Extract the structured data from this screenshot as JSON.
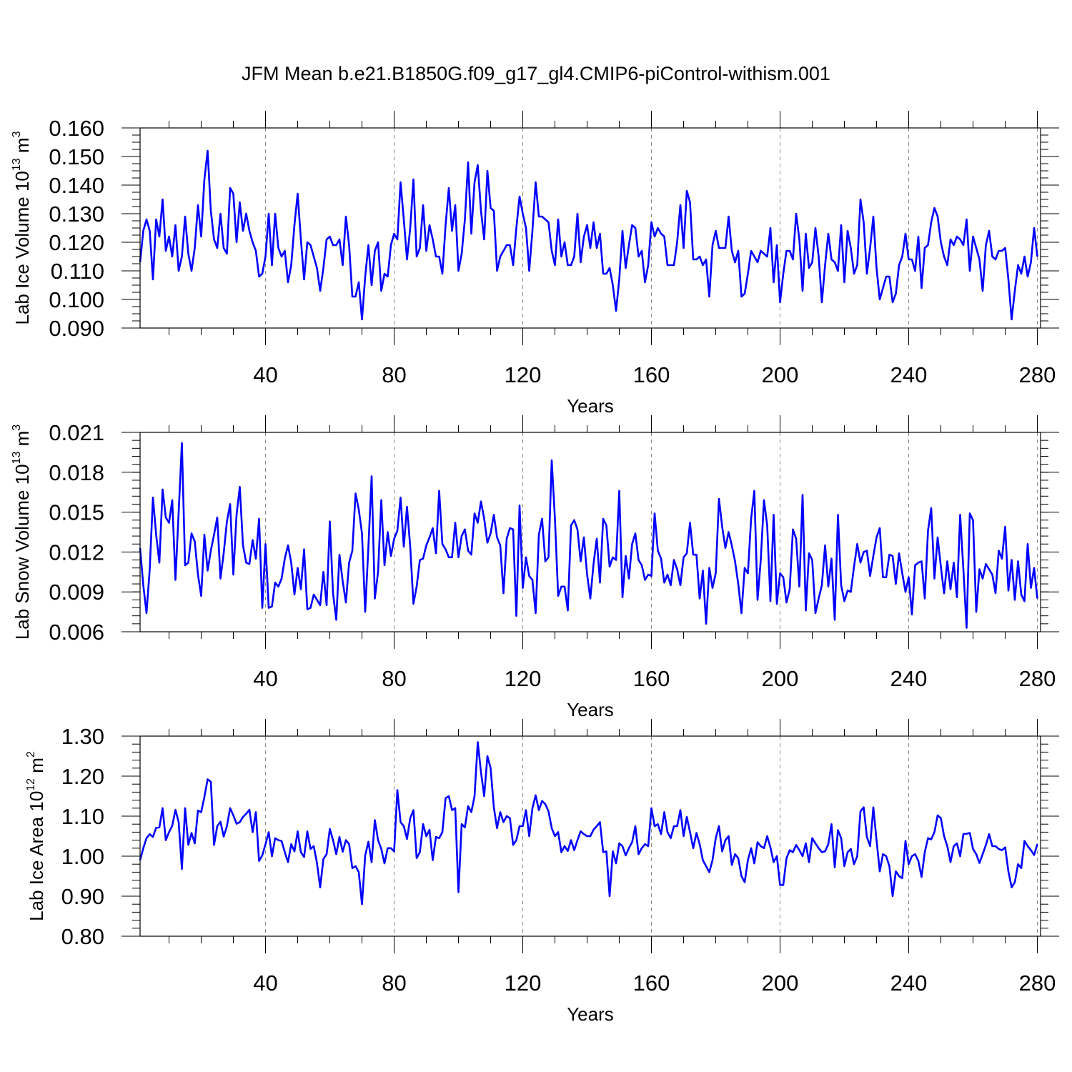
{
  "title": "JFM Mean b.e21.B1850G.f09_g17_gl4.CMIP6-piControl-withism.001",
  "chart_data": [
    {
      "type": "line",
      "name": "ice-volume",
      "ylabel": {
        "main": "Lab Ice Volume 10",
        "exp": "13",
        "unit": " m",
        "uexp": "3"
      },
      "xlabel": "Years",
      "xlim": [
        1,
        281
      ],
      "ylim": [
        0.09,
        0.16
      ],
      "xticks": [
        40,
        80,
        120,
        160,
        200,
        240,
        280
      ],
      "xtick_labels": [
        "40",
        "80",
        "120",
        "160",
        "200",
        "240",
        "280"
      ],
      "yticks": [
        0.09,
        0.1,
        0.11,
        0.12,
        0.13,
        0.14,
        0.15,
        0.16
      ],
      "ytick_labels": [
        "0.090",
        "0.100",
        "0.110",
        "0.120",
        "0.130",
        "0.140",
        "0.150",
        "0.160"
      ],
      "yminor_step": 0.0025,
      "grid": "dashed-vertical",
      "color": "#0000ff",
      "series": [
        {
          "name": "Lab Ice Volume",
          "x_start": 1,
          "x_step": 1,
          "values": [
            0.113,
            0.124,
            0.128,
            0.124,
            0.107,
            0.128,
            0.122,
            0.135,
            0.117,
            0.122,
            0.115,
            0.126,
            0.11,
            0.115,
            0.129,
            0.116,
            0.11,
            0.118,
            0.133,
            0.122,
            0.142,
            0.152,
            0.131,
            0.121,
            0.118,
            0.13,
            0.118,
            0.116,
            0.139,
            0.137,
            0.12,
            0.134,
            0.124,
            0.13,
            0.124,
            0.12,
            0.117,
            0.108,
            0.109,
            0.115,
            0.13,
            0.112,
            0.13,
            0.118,
            0.115,
            0.117,
            0.106,
            0.112,
            0.126,
            0.137,
            0.121,
            0.107,
            0.12,
            0.119,
            0.115,
            0.111,
            0.103,
            0.111,
            0.121,
            0.122,
            0.119,
            0.119,
            0.121,
            0.112,
            0.129,
            0.119,
            0.101,
            0.101,
            0.106,
            0.093,
            0.108,
            0.119,
            0.105,
            0.117,
            0.12,
            0.103,
            0.109,
            0.108,
            0.119,
            0.123,
            0.121,
            0.141,
            0.128,
            0.114,
            0.125,
            0.142,
            0.115,
            0.118,
            0.133,
            0.117,
            0.126,
            0.121,
            0.115,
            0.115,
            0.109,
            0.126,
            0.139,
            0.124,
            0.133,
            0.11,
            0.116,
            0.128,
            0.148,
            0.123,
            0.141,
            0.147,
            0.131,
            0.121,
            0.145,
            0.132,
            0.131,
            0.11,
            0.115,
            0.117,
            0.119,
            0.119,
            0.112,
            0.125,
            0.136,
            0.13,
            0.125,
            0.11,
            0.124,
            0.141,
            0.129,
            0.129,
            0.128,
            0.127,
            0.117,
            0.112,
            0.128,
            0.115,
            0.12,
            0.112,
            0.112,
            0.115,
            0.13,
            0.113,
            0.122,
            0.126,
            0.118,
            0.127,
            0.118,
            0.123,
            0.109,
            0.109,
            0.111,
            0.105,
            0.096,
            0.107,
            0.124,
            0.111,
            0.119,
            0.126,
            0.125,
            0.115,
            0.117,
            0.106,
            0.112,
            0.127,
            0.122,
            0.125,
            0.123,
            0.122,
            0.112,
            0.112,
            0.112,
            0.12,
            0.133,
            0.118,
            0.138,
            0.134,
            0.114,
            0.114,
            0.115,
            0.112,
            0.114,
            0.101,
            0.119,
            0.124,
            0.118,
            0.118,
            0.118,
            0.129,
            0.117,
            0.113,
            0.117,
            0.101,
            0.102,
            0.109,
            0.117,
            0.115,
            0.113,
            0.117,
            0.116,
            0.115,
            0.125,
            0.106,
            0.119,
            0.099,
            0.109,
            0.117,
            0.117,
            0.114,
            0.13,
            0.121,
            0.103,
            0.123,
            0.111,
            0.113,
            0.125,
            0.115,
            0.099,
            0.112,
            0.123,
            0.114,
            0.113,
            0.11,
            0.126,
            0.106,
            0.124,
            0.118,
            0.109,
            0.112,
            0.135,
            0.127,
            0.109,
            0.118,
            0.129,
            0.111,
            0.1,
            0.104,
            0.108,
            0.108,
            0.099,
            0.102,
            0.112,
            0.115,
            0.123,
            0.114,
            0.114,
            0.11,
            0.122,
            0.104,
            0.118,
            0.119,
            0.127,
            0.132,
            0.129,
            0.12,
            0.115,
            0.112,
            0.121,
            0.119,
            0.122,
            0.121,
            0.119,
            0.128,
            0.11,
            0.122,
            0.118,
            0.114,
            0.103,
            0.119,
            0.124,
            0.115,
            0.114,
            0.117,
            0.117,
            0.118,
            0.107,
            0.093,
            0.103,
            0.112,
            0.109,
            0.115,
            0.108,
            0.113,
            0.125,
            0.115
          ]
        }
      ]
    },
    {
      "type": "line",
      "name": "snow-volume",
      "ylabel": {
        "main": "Lab Snow Volume 10",
        "exp": "13",
        "unit": " m",
        "uexp": "3"
      },
      "xlabel": "Years",
      "xlim": [
        1,
        281
      ],
      "ylim": [
        0.006,
        0.021
      ],
      "xticks": [
        40,
        80,
        120,
        160,
        200,
        240,
        280
      ],
      "xtick_labels": [
        "40",
        "80",
        "120",
        "160",
        "200",
        "240",
        "280"
      ],
      "yticks": [
        0.006,
        0.009,
        0.012,
        0.015,
        0.018,
        0.021
      ],
      "ytick_labels": [
        "0.006",
        "0.009",
        "0.012",
        "0.015",
        "0.018",
        "0.021"
      ],
      "yminor_step": 0.0006,
      "grid": "dashed-vertical",
      "color": "#0000ff",
      "series": [
        {
          "name": "Lab Snow Volume",
          "x_start": 1,
          "x_step": 1,
          "values": [
            0.0123,
            0.0095,
            0.0074,
            0.0107,
            0.0161,
            0.0133,
            0.0112,
            0.0167,
            0.0146,
            0.0142,
            0.0159,
            0.0099,
            0.015,
            0.0202,
            0.011,
            0.0112,
            0.0134,
            0.0128,
            0.0103,
            0.0087,
            0.0133,
            0.0106,
            0.0121,
            0.0133,
            0.0146,
            0.01,
            0.0119,
            0.0143,
            0.0156,
            0.0103,
            0.0148,
            0.0169,
            0.0125,
            0.0112,
            0.0111,
            0.0129,
            0.0115,
            0.0145,
            0.0078,
            0.0126,
            0.0078,
            0.0079,
            0.0097,
            0.0094,
            0.01,
            0.0115,
            0.0125,
            0.0112,
            0.0088,
            0.0108,
            0.0092,
            0.0122,
            0.0077,
            0.0078,
            0.0088,
            0.0084,
            0.008,
            0.0105,
            0.008,
            0.0143,
            0.0089,
            0.0069,
            0.0118,
            0.0098,
            0.0082,
            0.0112,
            0.0121,
            0.0164,
            0.0152,
            0.0134,
            0.0075,
            0.0124,
            0.0177,
            0.0085,
            0.0105,
            0.0159,
            0.011,
            0.0135,
            0.0117,
            0.013,
            0.0136,
            0.0161,
            0.0124,
            0.0154,
            0.0124,
            0.0081,
            0.0094,
            0.0114,
            0.0115,
            0.0125,
            0.0131,
            0.0138,
            0.0119,
            0.0166,
            0.0126,
            0.0122,
            0.0116,
            0.0116,
            0.0142,
            0.0116,
            0.0132,
            0.0137,
            0.0121,
            0.0118,
            0.0149,
            0.0142,
            0.0158,
            0.0145,
            0.0127,
            0.0134,
            0.0148,
            0.0131,
            0.0125,
            0.0089,
            0.013,
            0.0138,
            0.0137,
            0.0072,
            0.0155,
            0.0093,
            0.0116,
            0.0102,
            0.0099,
            0.0074,
            0.0133,
            0.0145,
            0.0113,
            0.0116,
            0.0189,
            0.0145,
            0.0087,
            0.0094,
            0.0094,
            0.0076,
            0.014,
            0.0144,
            0.0137,
            0.0113,
            0.0131,
            0.0103,
            0.0085,
            0.0111,
            0.013,
            0.0097,
            0.0145,
            0.014,
            0.0109,
            0.0116,
            0.0114,
            0.0166,
            0.0086,
            0.0117,
            0.01,
            0.0126,
            0.0134,
            0.0114,
            0.011,
            0.0099,
            0.0103,
            0.0102,
            0.0149,
            0.0121,
            0.0115,
            0.0097,
            0.0103,
            0.0095,
            0.0114,
            0.0107,
            0.0095,
            0.0116,
            0.0119,
            0.0142,
            0.0118,
            0.0118,
            0.0085,
            0.0106,
            0.0066,
            0.0108,
            0.0093,
            0.0104,
            0.016,
            0.0139,
            0.0123,
            0.0135,
            0.0125,
            0.0113,
            0.0096,
            0.0074,
            0.0108,
            0.0104,
            0.0145,
            0.0166,
            0.0084,
            0.0114,
            0.0159,
            0.014,
            0.0083,
            0.0148,
            0.0081,
            0.0104,
            0.0101,
            0.0082,
            0.0092,
            0.0137,
            0.013,
            0.0094,
            0.0163,
            0.0076,
            0.0119,
            0.0114,
            0.0074,
            0.0085,
            0.0095,
            0.0125,
            0.0094,
            0.0115,
            0.0069,
            0.0148,
            0.0095,
            0.0083,
            0.0091,
            0.009,
            0.0109,
            0.0126,
            0.0112,
            0.012,
            0.0121,
            0.0102,
            0.0117,
            0.0131,
            0.0138,
            0.0101,
            0.0101,
            0.0118,
            0.0117,
            0.0096,
            0.0119,
            0.0104,
            0.009,
            0.0101,
            0.0073,
            0.011,
            0.0112,
            0.0113,
            0.0085,
            0.0136,
            0.0153,
            0.01,
            0.0131,
            0.0109,
            0.0089,
            0.0113,
            0.0092,
            0.0112,
            0.0086,
            0.0148,
            0.0107,
            0.0063,
            0.0149,
            0.0144,
            0.0075,
            0.0107,
            0.01,
            0.0111,
            0.0107,
            0.0103,
            0.0089,
            0.0121,
            0.0115,
            0.0139,
            0.0091,
            0.0114,
            0.0084,
            0.0113,
            0.0088,
            0.0083,
            0.0126,
            0.0093,
            0.0108,
            0.0085
          ]
        }
      ]
    },
    {
      "type": "line",
      "name": "ice-area",
      "ylabel": {
        "main": "Lab Ice Area 10",
        "exp": "12",
        "unit": " m",
        "uexp": "2"
      },
      "xlabel": "Years",
      "xlim": [
        1,
        281
      ],
      "ylim": [
        0.8,
        1.3
      ],
      "xticks": [
        40,
        80,
        120,
        160,
        200,
        240,
        280
      ],
      "xtick_labels": [
        "40",
        "80",
        "120",
        "160",
        "200",
        "240",
        "280"
      ],
      "yticks": [
        0.8,
        0.9,
        1.0,
        1.1,
        1.2,
        1.3
      ],
      "ytick_labels": [
        "0.80",
        "0.90",
        "1.00",
        "1.10",
        "1.20",
        "1.30"
      ],
      "yminor_step": 0.02,
      "grid": "dashed-vertical",
      "color": "#0000ff",
      "series": [
        {
          "name": "Lab Ice Area",
          "x_start": 1,
          "x_step": 1,
          "values": [
            0.99,
            1.02,
            1.045,
            1.055,
            1.048,
            1.071,
            1.072,
            1.12,
            1.04,
            1.06,
            1.076,
            1.116,
            1.085,
            0.968,
            1.12,
            1.028,
            1.058,
            1.032,
            1.114,
            1.11,
            1.148,
            1.192,
            1.186,
            1.028,
            1.075,
            1.086,
            1.049,
            1.075,
            1.12,
            1.102,
            1.081,
            1.085,
            1.098,
            1.106,
            1.116,
            1.06,
            1.11,
            0.988,
            1.002,
            1.03,
            1.06,
            1.0,
            1.045,
            1.04,
            1.038,
            1.01,
            0.985,
            1.03,
            1.012,
            1.062,
            1.01,
            0.998,
            1.062,
            1.018,
            1.025,
            0.983,
            0.922,
            0.993,
            1.005,
            1.068,
            1.04,
            1.005,
            1.048,
            1.011,
            1.04,
            1.03,
            0.97,
            0.975,
            0.96,
            0.88,
            1.002,
            1.036,
            0.985,
            1.09,
            1.04,
            1.018,
            0.982,
            1.02,
            1.02,
            1.012,
            1.165,
            1.085,
            1.075,
            1.043,
            1.095,
            1.115,
            0.995,
            1.01,
            1.08,
            1.05,
            1.066,
            0.99,
            1.048,
            1.045,
            1.06,
            1.145,
            1.15,
            1.115,
            1.12,
            0.91,
            1.08,
            1.072,
            1.125,
            1.11,
            1.15,
            1.285,
            1.21,
            1.15,
            1.25,
            1.22,
            1.122,
            1.07,
            1.11,
            1.085,
            1.1,
            1.095,
            1.028,
            1.04,
            1.075,
            1.075,
            1.115,
            1.05,
            1.12,
            1.152,
            1.115,
            1.138,
            1.13,
            1.112,
            1.07,
            1.05,
            1.06,
            1.01,
            1.025,
            1.013,
            1.04,
            1.015,
            1.04,
            1.062,
            1.055,
            1.05,
            1.05,
            1.066,
            1.075,
            1.085,
            1.01,
            1.012,
            0.9,
            1.012,
            0.982,
            1.032,
            1.025,
            1.002,
            1.02,
            1.035,
            1.075,
            1.005,
            1.02,
            1.03,
            1.025,
            1.12,
            1.075,
            1.08,
            1.055,
            1.11,
            1.06,
            1.045,
            1.075,
            1.075,
            1.115,
            1.05,
            1.098,
            1.06,
            1.02,
            1.058,
            1.03,
            0.99,
            0.975,
            0.96,
            0.99,
            1.045,
            1.075,
            1.012,
            1.04,
            1.05,
            0.978,
            1.005,
            0.995,
            0.95,
            0.935,
            0.99,
            1.02,
            0.982,
            1.035,
            1.025,
            1.02,
            1.05,
            1.022,
            0.985,
            1.0,
            0.928,
            0.928,
            0.995,
            1.015,
            1.01,
            1.028,
            1.015,
            1.0,
            1.032,
            0.985,
            1.045,
            1.032,
            1.02,
            1.01,
            1.012,
            1.03,
            1.08,
            0.972,
            1.065,
            1.045,
            0.975,
            1.01,
            1.018,
            0.98,
            1.0,
            1.112,
            1.122,
            1.048,
            1.025,
            1.122,
            1.04,
            0.962,
            1.005,
            1.0,
            0.975,
            0.9,
            0.962,
            0.95,
            0.945,
            1.038,
            0.98,
            1.0,
            1.005,
            0.988,
            0.948,
            1.01,
            1.045,
            1.042,
            1.06,
            1.102,
            1.095,
            1.05,
            1.025,
            0.985,
            1.025,
            1.032,
            1.0,
            1.055,
            1.056,
            1.058,
            1.018,
            1.005,
            0.983,
            1.005,
            1.028,
            1.055,
            1.025,
            1.025,
            1.018,
            1.015,
            1.022,
            0.962,
            0.922,
            0.935,
            0.98,
            0.97,
            1.038,
            1.025,
            1.015,
            1.003,
            1.03
          ]
        }
      ]
    }
  ]
}
